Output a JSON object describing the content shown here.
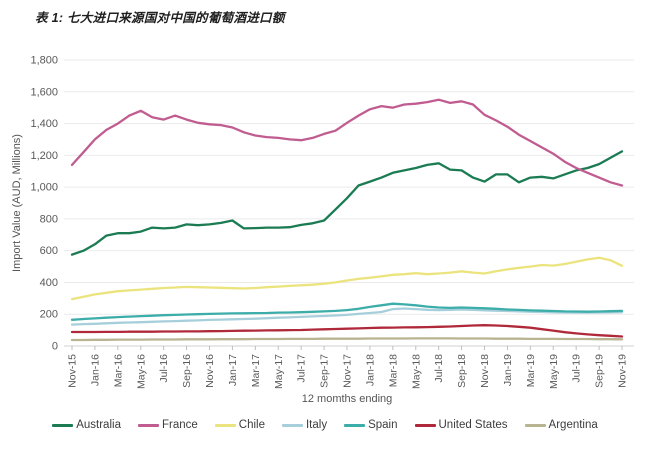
{
  "chart_data": {
    "type": "line",
    "title": "表 1: 七大进口来源国对中国的葡萄酒进口额",
    "xlabel": "12 momths ending",
    "ylabel": "Import Value (AUD, Millions)",
    "ylim": [
      0,
      1800
    ],
    "ytick_step": 200,
    "grid": "horizontal-only",
    "legend_position": "bottom",
    "x_tick_every": 2,
    "x": [
      "Nov-15",
      "Dec-15",
      "Jan-16",
      "Feb-16",
      "Mar-16",
      "Apr-16",
      "May-16",
      "Jun-16",
      "Jul-16",
      "Aug-16",
      "Sep-16",
      "Oct-16",
      "Nov-16",
      "Dec-16",
      "Jan-17",
      "Feb-17",
      "Mar-17",
      "Apr-17",
      "May-17",
      "Jun-17",
      "Jul-17",
      "Aug-17",
      "Sep-17",
      "Oct-17",
      "Nov-17",
      "Dec-17",
      "Jan-18",
      "Feb-18",
      "Mar-18",
      "Apr-18",
      "May-18",
      "Jun-18",
      "Jul-18",
      "Aug-18",
      "Sep-18",
      "Oct-18",
      "Nov-18",
      "Dec-18",
      "Jan-19",
      "Feb-19",
      "Mar-19",
      "Apr-19",
      "May-19",
      "Jun-19",
      "Jul-19",
      "Aug-19",
      "Sep-19",
      "Oct-19",
      "Nov-19"
    ],
    "series": [
      {
        "name": "Australia",
        "color": "#1b7b52",
        "values": [
          575,
          600,
          640,
          695,
          710,
          710,
          720,
          745,
          740,
          745,
          765,
          760,
          765,
          775,
          790,
          740,
          742,
          745,
          745,
          748,
          762,
          772,
          790,
          860,
          930,
          1010,
          1035,
          1060,
          1090,
          1105,
          1120,
          1140,
          1150,
          1110,
          1105,
          1060,
          1035,
          1080,
          1080,
          1030,
          1060,
          1065,
          1055,
          1080,
          1105,
          1120,
          1145,
          1185,
          1225
        ]
      },
      {
        "name": "France",
        "color": "#c05c90",
        "values": [
          1140,
          1220,
          1300,
          1360,
          1400,
          1450,
          1480,
          1440,
          1425,
          1450,
          1425,
          1405,
          1395,
          1390,
          1375,
          1345,
          1325,
          1315,
          1310,
          1300,
          1295,
          1310,
          1335,
          1355,
          1405,
          1450,
          1490,
          1510,
          1500,
          1520,
          1525,
          1535,
          1550,
          1530,
          1540,
          1520,
          1455,
          1420,
          1380,
          1330,
          1290,
          1250,
          1210,
          1160,
          1120,
          1090,
          1060,
          1030,
          1010
        ]
      },
      {
        "name": "Chile",
        "color": "#ebe47e",
        "values": [
          295,
          310,
          325,
          335,
          345,
          350,
          355,
          360,
          365,
          368,
          372,
          370,
          368,
          366,
          364,
          362,
          365,
          370,
          374,
          378,
          382,
          386,
          392,
          400,
          412,
          422,
          430,
          438,
          448,
          452,
          458,
          452,
          456,
          462,
          470,
          462,
          456,
          470,
          482,
          492,
          500,
          510,
          506,
          516,
          530,
          545,
          555,
          540,
          505
        ]
      },
      {
        "name": "Italy",
        "color": "#a7cfdb",
        "values": [
          135,
          138,
          140,
          143,
          146,
          148,
          150,
          152,
          155,
          157,
          159,
          161,
          164,
          166,
          168,
          170,
          172,
          175,
          178,
          180,
          183,
          186,
          189,
          192,
          196,
          202,
          208,
          214,
          232,
          236,
          232,
          228,
          226,
          228,
          230,
          227,
          225,
          222,
          220,
          218,
          216,
          214,
          212,
          211,
          210,
          210,
          211,
          212,
          213
        ]
      },
      {
        "name": "Spain",
        "color": "#3dadaa",
        "values": [
          165,
          170,
          174,
          178,
          182,
          185,
          188,
          191,
          194,
          196,
          198,
          200,
          202,
          204,
          205,
          206,
          207,
          208,
          210,
          211,
          213,
          215,
          218,
          221,
          226,
          234,
          246,
          256,
          266,
          262,
          256,
          248,
          242,
          240,
          242,
          240,
          237,
          234,
          230,
          227,
          224,
          222,
          220,
          218,
          217,
          216,
          217,
          219,
          221
        ]
      },
      {
        "name": "United States",
        "color": "#b0293a",
        "values": [
          88,
          88,
          88,
          89,
          89,
          90,
          90,
          90,
          91,
          91,
          92,
          92,
          93,
          94,
          95,
          96,
          97,
          98,
          99,
          100,
          101,
          103,
          105,
          107,
          109,
          111,
          113,
          115,
          116,
          117,
          118,
          119,
          121,
          123,
          126,
          129,
          131,
          129,
          126,
          121,
          115,
          106,
          97,
          87,
          79,
          73,
          68,
          64,
          60
        ]
      },
      {
        "name": "Argentina",
        "color": "#b8b492",
        "values": [
          38,
          38,
          39,
          39,
          40,
          40,
          40,
          41,
          41,
          41,
          42,
          42,
          42,
          43,
          43,
          43,
          44,
          44,
          44,
          45,
          45,
          45,
          46,
          46,
          46,
          46,
          47,
          47,
          47,
          47,
          48,
          48,
          48,
          48,
          47,
          47,
          47,
          46,
          46,
          46,
          45,
          45,
          45,
          44,
          44,
          44,
          43,
          43,
          42
        ]
      }
    ],
    "style": {
      "gridline_color": "#ebebeb",
      "axis_line_color": "#d2d2d2",
      "tick_color": "#bdbdbd",
      "tick_label_color": "#595959",
      "axis_title_color": "#555555"
    }
  }
}
